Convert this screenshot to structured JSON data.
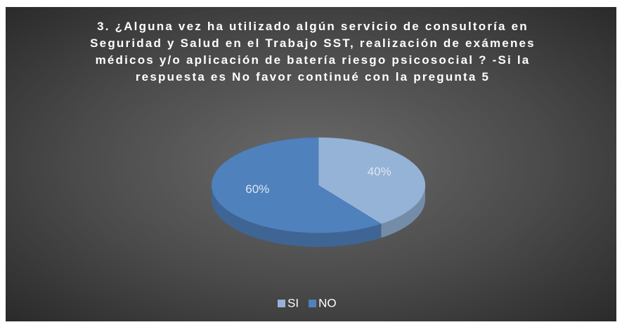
{
  "chart_data": {
    "type": "pie",
    "title": "3. ¿Alguna vez ha utilizado algún servicio de consultoría en Seguridad y Salud en el Trabajo SST, realización de exámenes médicos y/o aplicación de batería riesgo psicosocial ? -Si la respuesta es No favor continué con la pregunta 5",
    "categories": [
      "SI",
      "NO"
    ],
    "values": [
      40,
      60
    ],
    "value_labels": [
      "40%",
      "60%"
    ],
    "colors": [
      "#95b3d7",
      "#4f81bd"
    ],
    "legend": "bottom"
  }
}
